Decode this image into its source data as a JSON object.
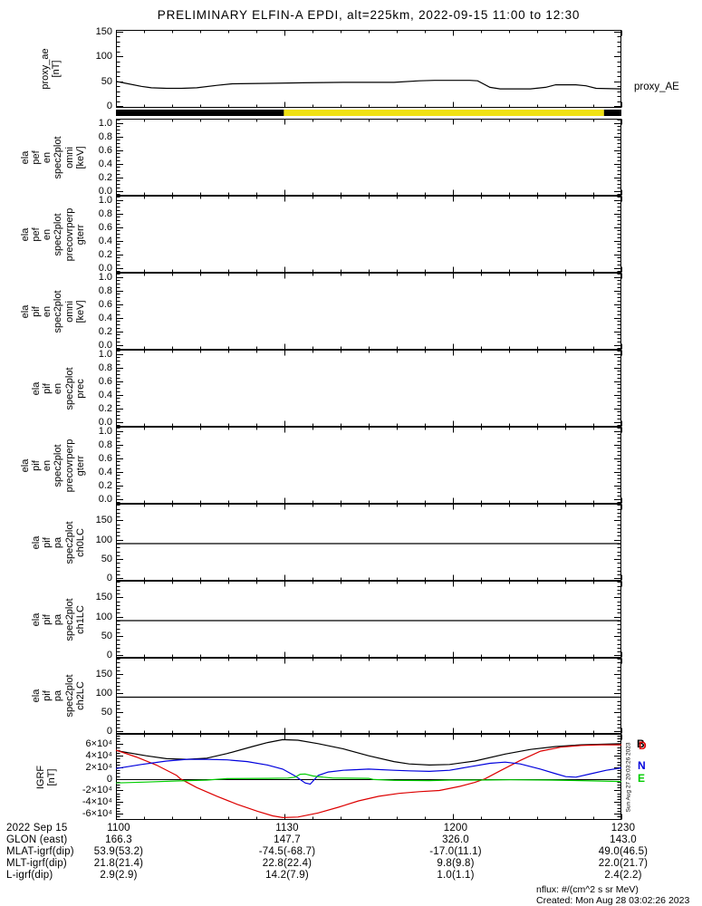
{
  "title": "PRELIMINARY ELFIN-A EPDI, alt=225km, 2022-09-15 11:00 to 12:30",
  "x_axis": {
    "tick_labels": [
      "1100",
      "1130",
      "1200",
      "1230"
    ],
    "tick_minutes": [
      0,
      30,
      60,
      90
    ],
    "minor_step_minutes": 5,
    "range_minutes": [
      0,
      90
    ]
  },
  "chart_data": [
    {
      "id": "proxy_ae",
      "type": "line",
      "ylabel_lines": [
        "proxy_ae",
        "[nT]"
      ],
      "right_label": "proxy_AE",
      "yticks": [
        {
          "v": 0,
          "label": "0"
        },
        {
          "v": 50,
          "label": "50"
        },
        {
          "v": 100,
          "label": "100"
        },
        {
          "v": 150,
          "label": "150"
        }
      ],
      "ylim": [
        -3,
        153
      ],
      "series": [
        {
          "name": "proxy_AE",
          "color": "#000000",
          "points": [
            [
              0,
              50
            ],
            [
              1.8,
              46
            ],
            [
              4.5,
              40
            ],
            [
              6.3,
              37
            ],
            [
              9,
              36
            ],
            [
              11.7,
              36
            ],
            [
              14.4,
              37
            ],
            [
              18,
              42
            ],
            [
              20.7,
              45
            ],
            [
              27,
              46
            ],
            [
              33.3,
              47
            ],
            [
              40.5,
              48
            ],
            [
              45,
              48
            ],
            [
              49.5,
              48
            ],
            [
              54,
              51
            ],
            [
              56.7,
              52
            ],
            [
              63,
              52
            ],
            [
              64.4,
              51
            ],
            [
              66.6,
              38
            ],
            [
              68.4,
              35
            ],
            [
              73.8,
              35
            ],
            [
              76.5,
              38
            ],
            [
              78.3,
              43
            ],
            [
              81.9,
              43
            ],
            [
              83.7,
              41
            ],
            [
              85.5,
              36
            ],
            [
              90,
              35
            ]
          ]
        }
      ]
    },
    {
      "id": "segment_bar",
      "type": "strip",
      "segments": [
        {
          "start_min": 0,
          "end_min": 29.9,
          "color": "#000000"
        },
        {
          "start_min": 29.9,
          "end_min": 86.9,
          "color": "#f0e112"
        },
        {
          "start_min": 86.9,
          "end_min": 90,
          "color": "#000000"
        }
      ]
    },
    {
      "id": "ela_pef_en_omni",
      "type": "empty",
      "ylabel_lines": [
        "ela",
        "pef",
        "en",
        "spec2plot",
        "omni",
        "[keV]"
      ],
      "yticks": [
        {
          "v": 0,
          "label": "0.0"
        },
        {
          "v": 0.2,
          "label": "0.2"
        },
        {
          "v": 0.4,
          "label": "0.4"
        },
        {
          "v": 0.6,
          "label": "0.6"
        },
        {
          "v": 0.8,
          "label": "0.8"
        },
        {
          "v": 1,
          "label": "1.0"
        }
      ],
      "ylim": [
        -0.07,
        1.06
      ],
      "series": []
    },
    {
      "id": "ela_pef_en_precovrperp_gterr",
      "type": "empty",
      "ylabel_lines": [
        "ela",
        "pef",
        "en",
        "spec2plot",
        "precovrperp",
        "gterr"
      ],
      "yticks": [
        {
          "v": 0,
          "label": "0.0"
        },
        {
          "v": 0.2,
          "label": "0.2"
        },
        {
          "v": 0.4,
          "label": "0.4"
        },
        {
          "v": 0.6,
          "label": "0.6"
        },
        {
          "v": 0.8,
          "label": "0.8"
        },
        {
          "v": 1,
          "label": "1.0"
        }
      ],
      "ylim": [
        -0.07,
        1.06
      ],
      "series": []
    },
    {
      "id": "ela_pif_en_omni",
      "type": "empty",
      "ylabel_lines": [
        "ela",
        "pif",
        "en",
        "spec2plot",
        "omni",
        "[keV]"
      ],
      "yticks": [
        {
          "v": 0,
          "label": "0.0"
        },
        {
          "v": 0.2,
          "label": "0.2"
        },
        {
          "v": 0.4,
          "label": "0.4"
        },
        {
          "v": 0.6,
          "label": "0.6"
        },
        {
          "v": 0.8,
          "label": "0.8"
        },
        {
          "v": 1,
          "label": "1.0"
        }
      ],
      "ylim": [
        -0.07,
        1.06
      ],
      "series": []
    },
    {
      "id": "ela_pif_en_prec",
      "type": "empty",
      "ylabel_lines": [
        "ela",
        "pif",
        "en",
        "spec2plot",
        "prec"
      ],
      "yticks": [
        {
          "v": 0,
          "label": "0.0"
        },
        {
          "v": 0.2,
          "label": "0.2"
        },
        {
          "v": 0.4,
          "label": "0.4"
        },
        {
          "v": 0.6,
          "label": "0.6"
        },
        {
          "v": 0.8,
          "label": "0.8"
        },
        {
          "v": 1,
          "label": "1.0"
        }
      ],
      "ylim": [
        -0.07,
        1.06
      ],
      "series": []
    },
    {
      "id": "ela_pif_en_precovrperp_gterr",
      "type": "empty",
      "ylabel_lines": [
        "ela",
        "pif",
        "en",
        "spec2plot",
        "precovrperp",
        "gterr"
      ],
      "yticks": [
        {
          "v": 0,
          "label": "0.0"
        },
        {
          "v": 0.2,
          "label": "0.2"
        },
        {
          "v": 0.4,
          "label": "0.4"
        },
        {
          "v": 0.6,
          "label": "0.6"
        },
        {
          "v": 0.8,
          "label": "0.8"
        },
        {
          "v": 1,
          "label": "1.0"
        }
      ],
      "ylim": [
        -0.07,
        1.06
      ],
      "series": []
    },
    {
      "id": "ela_pif_pa_ch0LC",
      "type": "line",
      "ylabel_lines": [
        "ela",
        "pif",
        "pa",
        "spec2plot",
        "ch0LC"
      ],
      "yticks": [
        {
          "v": 0,
          "label": "0"
        },
        {
          "v": 50,
          "label": "50"
        },
        {
          "v": 100,
          "label": "100"
        },
        {
          "v": 150,
          "label": "150"
        }
      ],
      "ylim": [
        -6,
        193
      ],
      "series": [
        {
          "name": "loss-cone",
          "color": "#000000",
          "points": [
            [
              0,
              90
            ],
            [
              90,
              90
            ]
          ]
        }
      ]
    },
    {
      "id": "ela_pif_pa_ch1LC",
      "type": "line",
      "ylabel_lines": [
        "ela",
        "pif",
        "pa",
        "spec2plot",
        "ch1LC"
      ],
      "yticks": [
        {
          "v": 0,
          "label": "0"
        },
        {
          "v": 50,
          "label": "50"
        },
        {
          "v": 100,
          "label": "100"
        },
        {
          "v": 150,
          "label": "150"
        }
      ],
      "ylim": [
        -6,
        193
      ],
      "series": [
        {
          "name": "loss-cone",
          "color": "#000000",
          "points": [
            [
              0,
              90
            ],
            [
              90,
              90
            ]
          ]
        }
      ]
    },
    {
      "id": "ela_pif_pa_ch2LC",
      "type": "line",
      "ylabel_lines": [
        "ela",
        "pif",
        "pa",
        "spec2plot",
        "ch2LC"
      ],
      "yticks": [
        {
          "v": 0,
          "label": "0"
        },
        {
          "v": 50,
          "label": "50"
        },
        {
          "v": 100,
          "label": "100"
        },
        {
          "v": 150,
          "label": "150"
        }
      ],
      "ylim": [
        -6,
        193
      ],
      "series": [
        {
          "name": "loss-cone",
          "color": "#000000",
          "points": [
            [
              0,
              90
            ],
            [
              90,
              90
            ]
          ]
        }
      ]
    },
    {
      "id": "igrf",
      "type": "line",
      "ylabel_lines": [
        "IGRF",
        "[nT]"
      ],
      "yticks": [
        {
          "v": 60000,
          "label": "6×10⁴"
        },
        {
          "v": 40000,
          "label": "4×10⁴"
        },
        {
          "v": 20000,
          "label": "2×10⁴"
        },
        {
          "v": 0,
          "label": "0"
        },
        {
          "v": -20000,
          "label": "-2×10⁴"
        },
        {
          "v": -40000,
          "label": "-4×10⁴"
        },
        {
          "v": -60000,
          "label": "-6×10⁴"
        }
      ],
      "ylim": [
        -71000,
        78000
      ],
      "zero_line": true,
      "side_note": "Sun Aug 27 20:03:26 2023",
      "legend": [
        {
          "label": "B",
          "color": "#000000"
        },
        {
          "label": "D",
          "color": "#dd0000"
        },
        {
          "label": "N",
          "color": "#0000dd"
        },
        {
          "label": "E",
          "color": "#00cc00"
        }
      ],
      "series": [
        {
          "name": "B",
          "color": "#000000",
          "points": [
            [
              0,
              49000
            ],
            [
              5.4,
              40000
            ],
            [
              9,
              35000
            ],
            [
              12.6,
              34000
            ],
            [
              16.2,
              36000
            ],
            [
              19.8,
              44000
            ],
            [
              24.3,
              56000
            ],
            [
              27,
              63000
            ],
            [
              29.7,
              68000
            ],
            [
              32.4,
              67000
            ],
            [
              36,
              61000
            ],
            [
              40.5,
              52000
            ],
            [
              45,
              40000
            ],
            [
              49.5,
              30000
            ],
            [
              52.2,
              26000
            ],
            [
              55.8,
              24000
            ],
            [
              59.4,
              25000
            ],
            [
              63.9,
              31000
            ],
            [
              69.3,
              43000
            ],
            [
              73.8,
              51000
            ],
            [
              78.3,
              56000
            ],
            [
              82.8,
              59000
            ],
            [
              90,
              61000
            ]
          ]
        },
        {
          "name": "D",
          "color": "#dd0000",
          "points": [
            [
              0,
              50000
            ],
            [
              3.6,
              38000
            ],
            [
              7.2,
              24000
            ],
            [
              10.8,
              6000
            ],
            [
              11.5,
              0
            ],
            [
              14.4,
              -15000
            ],
            [
              18,
              -30000
            ],
            [
              21.6,
              -44000
            ],
            [
              25.2,
              -56000
            ],
            [
              27.9,
              -64000
            ],
            [
              29.7,
              -67000
            ],
            [
              32.4,
              -66000
            ],
            [
              36,
              -59000
            ],
            [
              39.6,
              -49000
            ],
            [
              43.2,
              -38000
            ],
            [
              46.8,
              -30000
            ],
            [
              50.4,
              -25000
            ],
            [
              54,
              -22000
            ],
            [
              57.6,
              -20000
            ],
            [
              61.2,
              -13000
            ],
            [
              63.9,
              -6000
            ],
            [
              65.7,
              0
            ],
            [
              68.4,
              14000
            ],
            [
              72,
              32000
            ],
            [
              75.6,
              48000
            ],
            [
              79.2,
              55000
            ],
            [
              82.8,
              58000
            ],
            [
              86.4,
              59000
            ],
            [
              90,
              59000
            ]
          ]
        },
        {
          "name": "N",
          "color": "#0000dd",
          "points": [
            [
              0,
              18000
            ],
            [
              4.5,
              25000
            ],
            [
              9,
              31000
            ],
            [
              12.6,
              34000
            ],
            [
              16.2,
              34000
            ],
            [
              19.8,
              33000
            ],
            [
              23.4,
              30000
            ],
            [
              27,
              24000
            ],
            [
              29.7,
              17000
            ],
            [
              31.9,
              5000
            ],
            [
              33.7,
              -7000
            ],
            [
              34.6,
              -9000
            ],
            [
              36,
              6000
            ],
            [
              37.8,
              12000
            ],
            [
              40.5,
              15000
            ],
            [
              45,
              17000
            ],
            [
              49.5,
              15000
            ],
            [
              52.2,
              14000
            ],
            [
              55.8,
              13000
            ],
            [
              59.4,
              15000
            ],
            [
              63,
              21000
            ],
            [
              66.6,
              27000
            ],
            [
              69.3,
              29000
            ],
            [
              72,
              26000
            ],
            [
              75.6,
              17000
            ],
            [
              78.3,
              9000
            ],
            [
              80.1,
              4000
            ],
            [
              81.9,
              3000
            ],
            [
              84.6,
              9000
            ],
            [
              87.3,
              15000
            ],
            [
              90,
              19000
            ]
          ]
        },
        {
          "name": "E",
          "color": "#00cc00",
          "points": [
            [
              0,
              -7000
            ],
            [
              5.4,
              -5500
            ],
            [
              10.8,
              -3500
            ],
            [
              16.2,
              -2000
            ],
            [
              19.8,
              500
            ],
            [
              27,
              1000
            ],
            [
              30.6,
              1500
            ],
            [
              31.9,
              3000
            ],
            [
              32.8,
              8000
            ],
            [
              33.7,
              8500
            ],
            [
              35.1,
              5000
            ],
            [
              36.9,
              3000
            ],
            [
              38.7,
              1500
            ],
            [
              45,
              1000
            ],
            [
              45.9,
              -1000
            ],
            [
              49.5,
              -2500
            ],
            [
              55.8,
              -3000
            ],
            [
              59.4,
              -2000
            ],
            [
              64.8,
              -2000
            ],
            [
              70.2,
              -1500
            ],
            [
              77.4,
              -2000
            ],
            [
              82.8,
              -3000
            ],
            [
              90,
              -4500
            ]
          ]
        }
      ]
    }
  ],
  "footer": {
    "rows": [
      {
        "label": "2022 Sep 15",
        "values": [
          "1100",
          "1130",
          "1200",
          "1230"
        ]
      },
      {
        "label": "GLON (east)",
        "values": [
          "166.3",
          "147.7",
          "326.0",
          "143.0"
        ]
      },
      {
        "label": "MLAT-igrf(dip)",
        "values": [
          "53.9(53.2)",
          "-74.5(-68.7)",
          "-17.0(11.1)",
          "49.0(46.5)"
        ]
      },
      {
        "label": "MLT-igrf(dip)",
        "values": [
          "21.8(21.4)",
          "22.8(22.4)",
          "9.8(9.8)",
          "22.0(21.7)"
        ]
      },
      {
        "label": "L-igrf(dip)",
        "values": [
          "2.9(2.9)",
          "14.2(7.9)",
          "1.0(1.1)",
          "2.4(2.2)"
        ]
      }
    ]
  },
  "notes": {
    "units": "nflux: #/(cm^2 s sr MeV)",
    "created": "Created: Mon Aug 28 03:02:26 2023"
  }
}
